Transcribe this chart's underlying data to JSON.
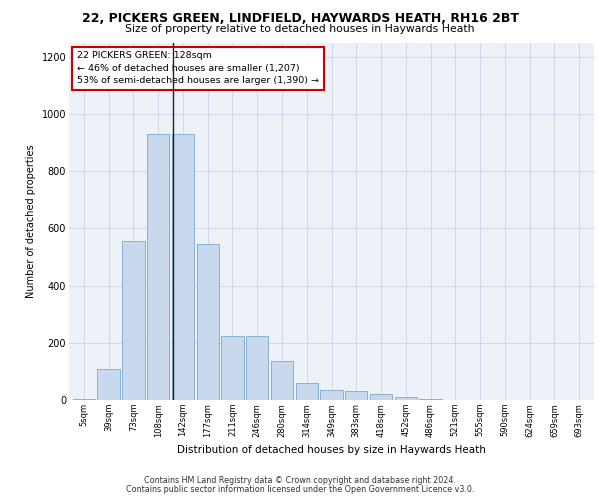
{
  "title_line1": "22, PICKERS GREEN, LINDFIELD, HAYWARDS HEATH, RH16 2BT",
  "title_line2": "Size of property relative to detached houses in Haywards Heath",
  "xlabel": "Distribution of detached houses by size in Haywards Heath",
  "ylabel": "Number of detached properties",
  "footer_line1": "Contains HM Land Registry data © Crown copyright and database right 2024.",
  "footer_line2": "Contains public sector information licensed under the Open Government Licence v3.0.",
  "annotation_line1": "22 PICKERS GREEN: 128sqm",
  "annotation_line2": "← 46% of detached houses are smaller (1,207)",
  "annotation_line3": "53% of semi-detached houses are larger (1,390) →",
  "bar_labels": [
    "5sqm",
    "39sqm",
    "73sqm",
    "108sqm",
    "142sqm",
    "177sqm",
    "211sqm",
    "246sqm",
    "280sqm",
    "314sqm",
    "349sqm",
    "383sqm",
    "418sqm",
    "452sqm",
    "486sqm",
    "521sqm",
    "555sqm",
    "590sqm",
    "624sqm",
    "659sqm",
    "693sqm"
  ],
  "bar_values": [
    5,
    110,
    555,
    930,
    930,
    545,
    225,
    225,
    135,
    60,
    35,
    30,
    20,
    10,
    5,
    0,
    0,
    0,
    0,
    0,
    0
  ],
  "bar_color": "#c8d9ee",
  "bar_edge_color": "#7aaad0",
  "grid_color": "#d0d8e8",
  "background_color": "#edf2f9",
  "annotation_box_color": "#ffffff",
  "annotation_box_edge": "#cc0000",
  "ylim": [
    0,
    1250
  ],
  "yticks": [
    0,
    200,
    400,
    600,
    800,
    1000,
    1200
  ]
}
